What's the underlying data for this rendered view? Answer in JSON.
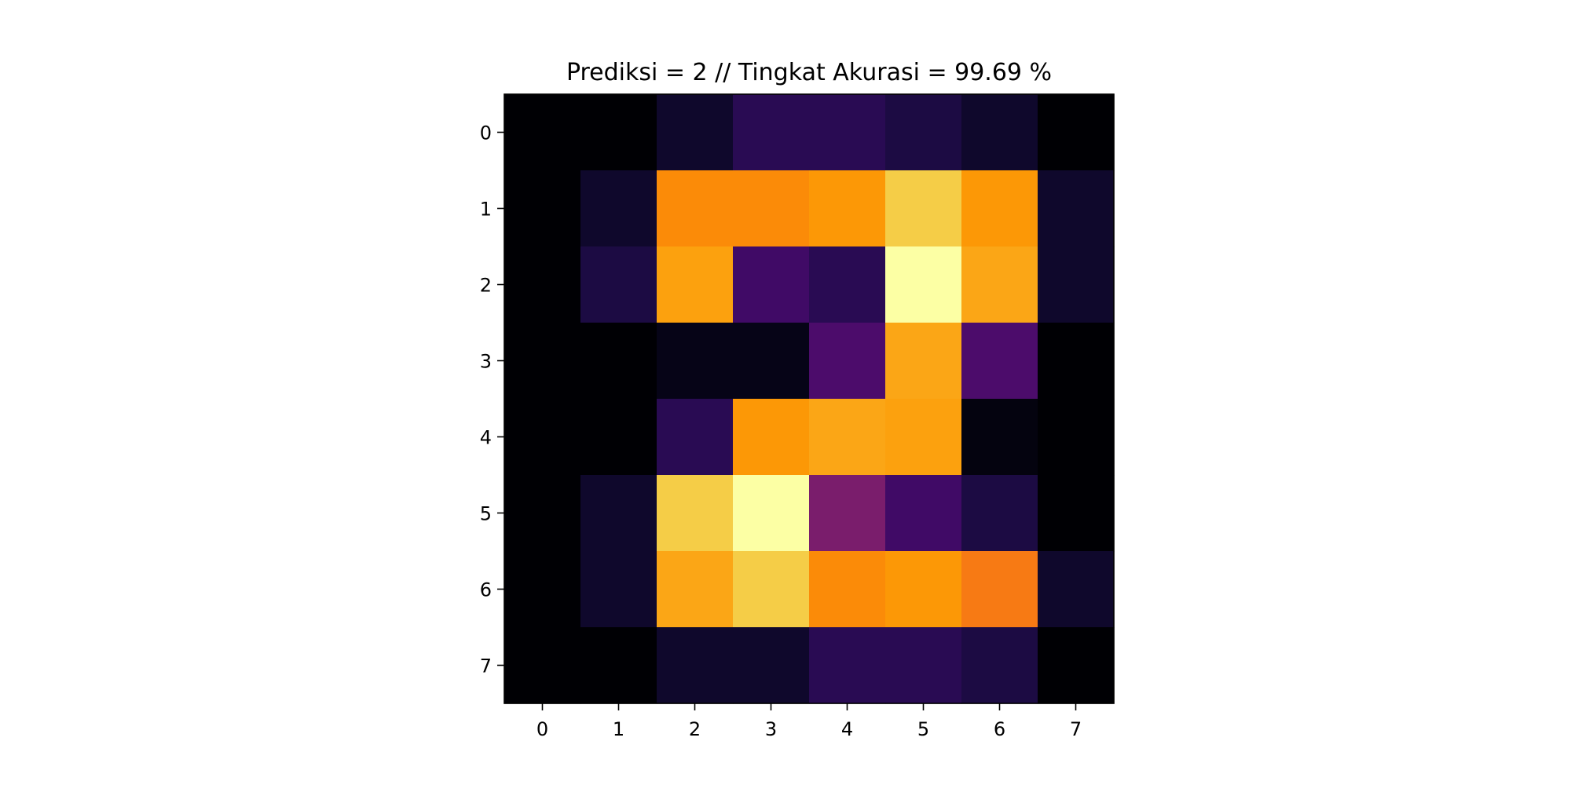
{
  "chart_data": {
    "type": "heatmap",
    "title": "Prediksi = 2 // Tingkat Akurasi = 99.69 %",
    "xlabel": "",
    "ylabel": "",
    "x_ticks": [
      "0",
      "1",
      "2",
      "3",
      "4",
      "5",
      "6",
      "7"
    ],
    "y_ticks": [
      "0",
      "1",
      "2",
      "3",
      "4",
      "5",
      "6",
      "7"
    ],
    "colormap": "inferno",
    "value_range": [
      0,
      16
    ],
    "grid": false,
    "values": [
      [
        0,
        0,
        1,
        2,
        2,
        1.5,
        1,
        0
      ],
      [
        0,
        1,
        13,
        13,
        13.5,
        15,
        13.5,
        1
      ],
      [
        0,
        1.5,
        13.8,
        3,
        2,
        16,
        14,
        1
      ],
      [
        0,
        0,
        0.5,
        0.5,
        3.5,
        14,
        3.5,
        0
      ],
      [
        0,
        0,
        2,
        13.5,
        14,
        13.8,
        0.3,
        0
      ],
      [
        0,
        1,
        15,
        16.5,
        5.5,
        3,
        1.5,
        0
      ],
      [
        0,
        1,
        14,
        15,
        13,
        13.5,
        12.3,
        1
      ],
      [
        0,
        0,
        1,
        1,
        2,
        2,
        1.5,
        0
      ]
    ]
  }
}
